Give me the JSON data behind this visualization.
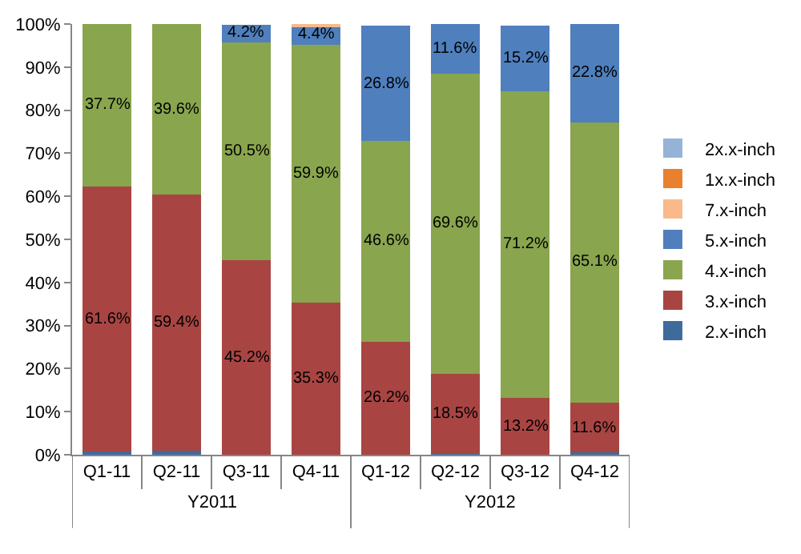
{
  "chart_data": {
    "type": "bar",
    "stacked": true,
    "categories": [
      "Q1-11",
      "Q2-11",
      "Q3-11",
      "Q4-11",
      "Q1-12",
      "Q2-12",
      "Q3-12",
      "Q4-12"
    ],
    "annotations": [
      "Y2011",
      "Y2012"
    ],
    "series": [
      {
        "name": "2.x-inch",
        "color": "#3f6a9c",
        "values": [
          0.7,
          1.0,
          null,
          null,
          null,
          0.3,
          null,
          0.5
        ],
        "value_labels": [
          null,
          null,
          null,
          null,
          null,
          null,
          null,
          null
        ]
      },
      {
        "name": "3.x-inch",
        "color": "#a84543",
        "values": [
          61.6,
          59.4,
          45.2,
          35.3,
          26.2,
          18.5,
          13.2,
          11.6
        ],
        "value_labels": [
          "61.6%",
          "59.4%",
          "45.2%",
          "35.3%",
          "26.2%",
          "18.5%",
          "13.2%",
          "11.6%"
        ]
      },
      {
        "name": "4.x-inch",
        "color": "#89a54e",
        "values": [
          37.7,
          39.6,
          50.5,
          59.9,
          46.6,
          69.6,
          71.2,
          65.1
        ],
        "value_labels": [
          "37.7%",
          "39.6%",
          "50.5%",
          "59.9%",
          "46.6%",
          "69.6%",
          "71.2%",
          "65.1%"
        ]
      },
      {
        "name": "5.x-inch",
        "color": "#4f7fbd",
        "values": [
          null,
          null,
          4.2,
          4.4,
          26.8,
          11.6,
          15.2,
          22.8
        ],
        "value_labels": [
          null,
          null,
          "4.2%",
          "4.4%",
          "26.8%",
          "11.6%",
          "15.2%",
          "22.8%"
        ]
      },
      {
        "name": "7.x-inch",
        "color": "#f9b98b",
        "values": [
          null,
          null,
          null,
          0.4,
          null,
          null,
          null,
          null
        ],
        "value_labels": [
          null,
          null,
          null,
          null,
          null,
          null,
          null,
          null
        ]
      },
      {
        "name": "1x.x-inch",
        "color": "#e8802e",
        "values": [
          null,
          null,
          null,
          null,
          null,
          null,
          null,
          null
        ],
        "value_labels": [
          null,
          null,
          null,
          null,
          null,
          null,
          null,
          null
        ]
      },
      {
        "name": "2x.x-inch",
        "color": "#95b3d7",
        "values": [
          null,
          null,
          null,
          null,
          null,
          null,
          null,
          null
        ],
        "value_labels": [
          null,
          null,
          null,
          null,
          null,
          null,
          null,
          null
        ]
      }
    ],
    "ylim": [
      0,
      100
    ],
    "yticks": [
      {
        "value": 0,
        "label": "0%"
      },
      {
        "value": 10,
        "label": "10%"
      },
      {
        "value": 20,
        "label": "20%"
      },
      {
        "value": 30,
        "label": "30%"
      },
      {
        "value": 40,
        "label": "40%"
      },
      {
        "value": 50,
        "label": "50%"
      },
      {
        "value": 60,
        "label": "60%"
      },
      {
        "value": 70,
        "label": "70%"
      },
      {
        "value": 80,
        "label": "80%"
      },
      {
        "value": 90,
        "label": "90%"
      },
      {
        "value": 100,
        "label": "100%"
      }
    ],
    "legend": "right"
  }
}
